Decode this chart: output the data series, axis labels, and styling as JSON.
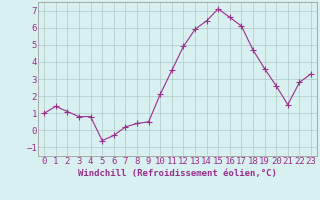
{
  "x": [
    0,
    1,
    2,
    3,
    4,
    5,
    6,
    7,
    8,
    9,
    10,
    11,
    12,
    13,
    14,
    15,
    16,
    17,
    18,
    19,
    20,
    21,
    22,
    23
  ],
  "y": [
    1.0,
    1.4,
    1.1,
    0.8,
    0.8,
    -0.6,
    -0.3,
    0.2,
    0.4,
    0.5,
    2.1,
    3.5,
    4.9,
    5.9,
    6.4,
    7.1,
    6.6,
    6.1,
    4.7,
    3.6,
    2.6,
    1.5,
    2.8,
    3.3
  ],
  "line_color": "#9b2d8e",
  "marker": "D",
  "marker_size": 2,
  "bg_color": "#d8f0f0",
  "grid_color": "#b0c8c8",
  "xlabel": "Windchill (Refroidissement éolien,°C)",
  "ylabel": "",
  "ylim": [
    -1.5,
    7.5
  ],
  "xlim": [
    -0.5,
    23.5
  ],
  "yticks": [
    -1,
    0,
    1,
    2,
    3,
    4,
    5,
    6,
    7
  ],
  "xticks": [
    0,
    1,
    2,
    3,
    4,
    5,
    6,
    7,
    8,
    9,
    10,
    11,
    12,
    13,
    14,
    15,
    16,
    17,
    18,
    19,
    20,
    21,
    22,
    23
  ],
  "font_color": "#9b2d8e",
  "font_size": 6.5
}
